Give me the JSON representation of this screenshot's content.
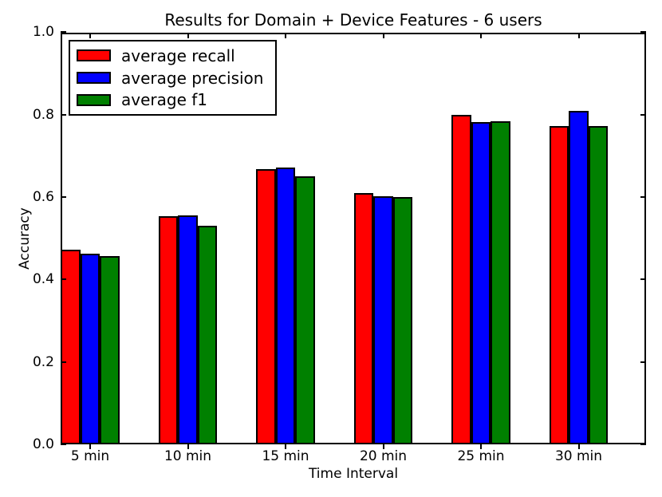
{
  "chart_data": {
    "type": "bar",
    "title": "Results for Domain + Device Features - 6 users",
    "xlabel": "Time Interval",
    "ylabel": "Accuracy",
    "categories": [
      "5 min",
      "10 min",
      "15 min",
      "20 min",
      "25 min",
      "30 min"
    ],
    "series": [
      {
        "name": "average recall",
        "color": "#ff0000",
        "values": [
          0.473,
          0.553,
          0.667,
          0.61,
          0.8,
          0.772
        ]
      },
      {
        "name": "average precision",
        "color": "#0000ff",
        "values": [
          0.463,
          0.555,
          0.671,
          0.603,
          0.783,
          0.81
        ]
      },
      {
        "name": "average f1",
        "color": "#008000",
        "values": [
          0.456,
          0.531,
          0.65,
          0.6,
          0.785,
          0.773
        ]
      }
    ],
    "ylim": [
      0.0,
      1.0
    ],
    "yticks": [
      "0.0",
      "0.2",
      "0.4",
      "0.6",
      "0.8",
      "1.0"
    ],
    "grid": false,
    "legend_position": "upper left",
    "bar_edge_color": "#000000",
    "background_color": "#ffffff"
  }
}
